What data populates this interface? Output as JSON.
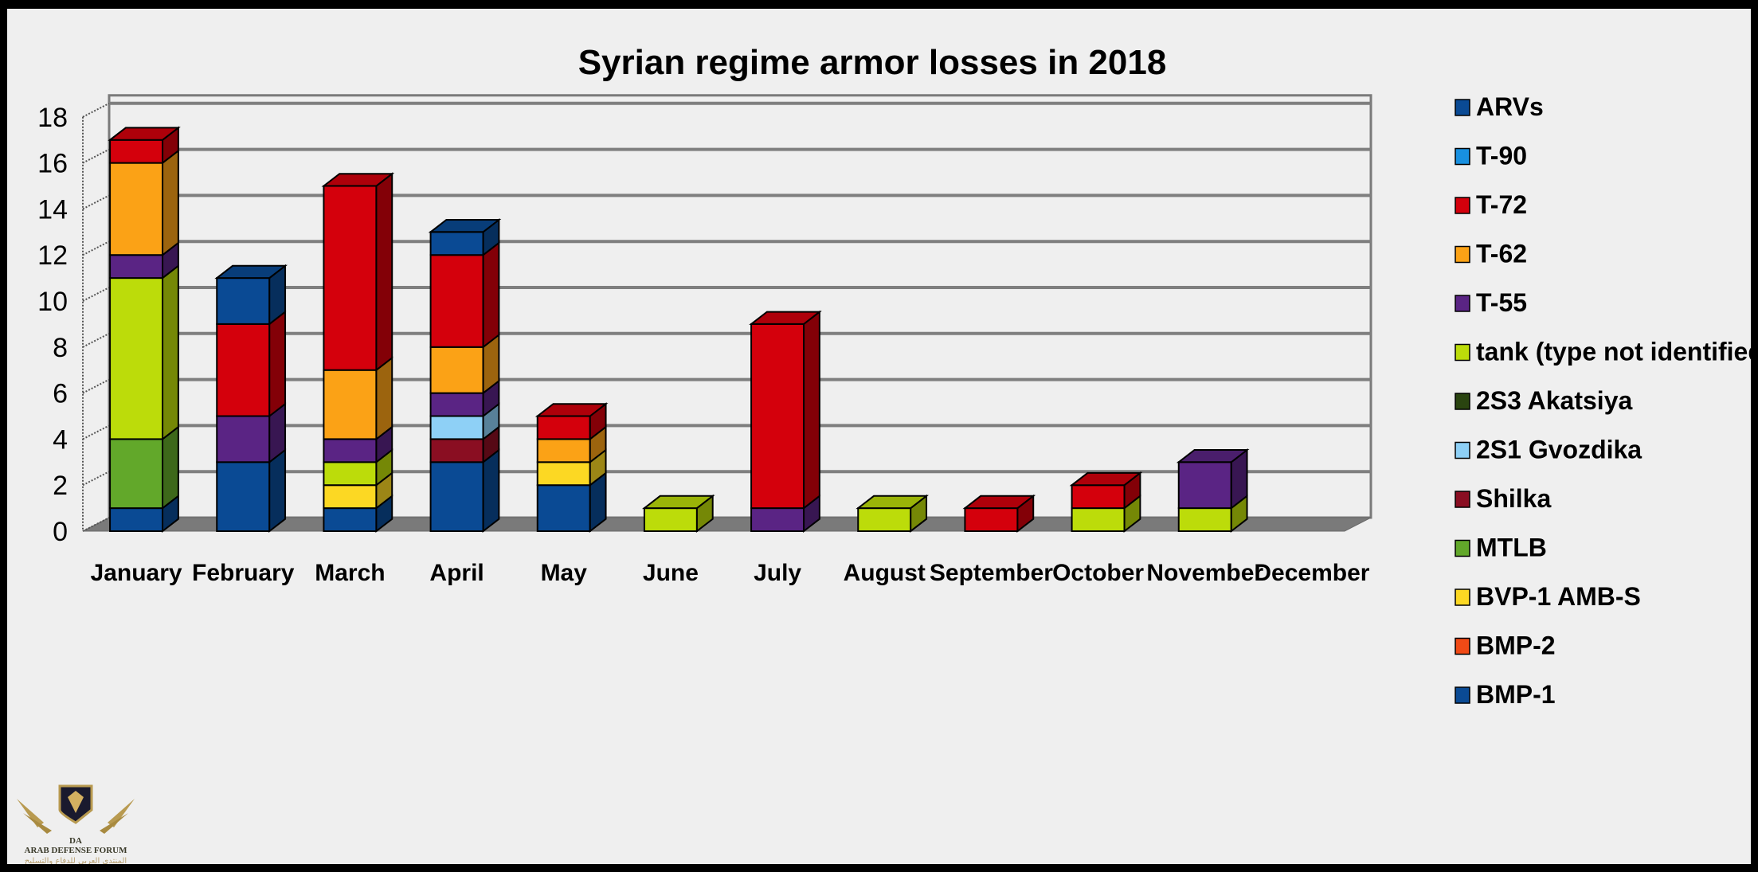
{
  "chart_data": {
    "type": "bar",
    "stacked": true,
    "style": "3d-stacked-column",
    "title": "Syrian regime armor losses in 2018",
    "xlabel": "",
    "ylabel": "",
    "ylim": [
      0,
      18
    ],
    "yticks": [
      0,
      2,
      4,
      6,
      8,
      10,
      12,
      14,
      16,
      18
    ],
    "grid": true,
    "legend_position": "right",
    "categories": [
      "January",
      "February",
      "March",
      "April",
      "May",
      "June",
      "July",
      "August",
      "September",
      "October",
      "November",
      "December"
    ],
    "series": [
      {
        "name": "BMP-1",
        "color": "#0a4a94",
        "values": [
          1,
          3,
          1,
          3,
          2,
          0,
          0,
          0,
          0,
          0,
          0,
          0
        ]
      },
      {
        "name": "BMP-2",
        "color": "#f04a16",
        "values": [
          0,
          0,
          0,
          0,
          0,
          0,
          0,
          0,
          0,
          0,
          0,
          0
        ]
      },
      {
        "name": "BVP-1 AMB-S",
        "color": "#fcd823",
        "values": [
          0,
          0,
          1,
          0,
          1,
          0,
          0,
          0,
          0,
          0,
          0,
          0
        ]
      },
      {
        "name": "MTLB",
        "color": "#62a82a",
        "values": [
          3,
          0,
          0,
          0,
          0,
          0,
          0,
          0,
          0,
          0,
          0,
          0
        ]
      },
      {
        "name": "Shilka",
        "color": "#8a0e22",
        "values": [
          0,
          0,
          0,
          1,
          0,
          0,
          0,
          0,
          0,
          0,
          0,
          0
        ]
      },
      {
        "name": "2S1 Gvozdika",
        "color": "#8ed0f6",
        "values": [
          0,
          0,
          0,
          1,
          0,
          0,
          0,
          0,
          0,
          0,
          0,
          0
        ]
      },
      {
        "name": "2S3 Akatsiya",
        "color": "#2a4410",
        "values": [
          0,
          0,
          0,
          0,
          0,
          0,
          0,
          0,
          0,
          0,
          0,
          0
        ]
      },
      {
        "name": "tank (type not identified)",
        "color": "#bcdc0a",
        "values": [
          7,
          0,
          1,
          0,
          0,
          1,
          0,
          1,
          0,
          1,
          1,
          0
        ]
      },
      {
        "name": "T-55",
        "color": "#5a2484",
        "values": [
          1,
          2,
          1,
          1,
          0,
          0,
          1,
          0,
          0,
          0,
          2,
          0
        ]
      },
      {
        "name": "T-62",
        "color": "#fba216",
        "values": [
          4,
          0,
          3,
          2,
          1,
          0,
          0,
          0,
          0,
          0,
          0,
          0
        ]
      },
      {
        "name": "T-72",
        "color": "#d4000c",
        "values": [
          1,
          4,
          8,
          4,
          1,
          0,
          8,
          0,
          1,
          1,
          0,
          0
        ]
      },
      {
        "name": "T-90",
        "color": "#1890e0",
        "values": [
          0,
          0,
          0,
          0,
          0,
          0,
          0,
          0,
          0,
          0,
          0,
          0
        ]
      },
      {
        "name": "ARVs",
        "color": "#0a4a94",
        "values": [
          0,
          2,
          0,
          1,
          0,
          0,
          0,
          0,
          0,
          0,
          0,
          0
        ]
      }
    ]
  },
  "legend": {
    "items": [
      "ARVs",
      "T-90",
      "T-72",
      "T-62",
      "T-55",
      "tank (type not identified)",
      "2S3 Akatsiya",
      "2S1 Gvozdika",
      "Shilka",
      "MTLB",
      "BVP-1 AMB-S",
      "BMP-2",
      "BMP-1"
    ]
  },
  "watermark": {
    "logo_letters": "DA",
    "line1": "ARAB DEFENSE FORUM",
    "line2": "المنتدى العربي للدفاع والتسليح"
  }
}
